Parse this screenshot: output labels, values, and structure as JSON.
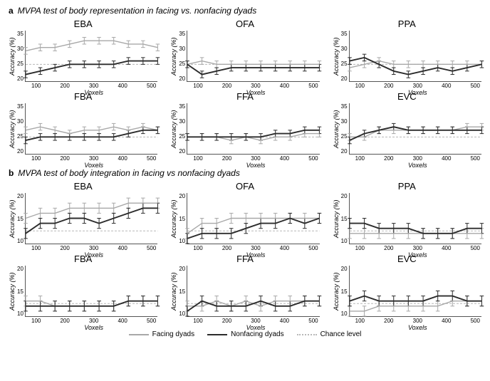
{
  "colors": {
    "facing": "#a8a8a8",
    "nonfacing": "#2c2c2c",
    "chance": "#b8b8b8",
    "axis": "#555555",
    "text": "#000000",
    "background": "#ffffff"
  },
  "typography": {
    "title_fontsize": 12,
    "chart_title_fontsize": 13,
    "axis_fontsize": 8,
    "label_fontsize": 9
  },
  "xvalues": [
    50,
    100,
    150,
    200,
    250,
    300,
    350,
    400,
    450,
    500
  ],
  "xticks": [
    100,
    200,
    300,
    400,
    500
  ],
  "line_styles": {
    "facing_width": 1.4,
    "nonfacing_width": 1.9,
    "chance_dash": "3,2",
    "chance_width": 1
  },
  "error_bar": {
    "width": 1,
    "cap": 3,
    "half_height": 1.0
  },
  "sections": {
    "a": {
      "letter": "a",
      "title": "MVPA test of body representation in facing vs. nonfacing dyads",
      "ylim": [
        20,
        35
      ],
      "ytick_step": 5,
      "chance": 25,
      "ylabel": "Accuracy (%)",
      "xlabel": "Voxels",
      "charts": [
        {
          "name": "EBA",
          "facing": [
            29,
            30,
            30,
            31,
            32,
            32,
            32,
            31,
            31,
            30
          ],
          "nonfacing": [
            22,
            23,
            24,
            25,
            25,
            25,
            25,
            26,
            26,
            26
          ]
        },
        {
          "name": "OFA",
          "facing": [
            25,
            26,
            25,
            25,
            25,
            25,
            25,
            25,
            25,
            25
          ],
          "nonfacing": [
            25,
            22,
            23,
            24,
            24,
            24,
            24,
            24,
            24,
            24
          ]
        },
        {
          "name": "PPA",
          "facing": [
            24,
            25,
            26,
            25,
            25,
            25,
            25,
            25,
            25,
            25
          ],
          "nonfacing": [
            26,
            27,
            25,
            23,
            22,
            23,
            24,
            23,
            24,
            25
          ]
        },
        {
          "name": "FBA",
          "facing": [
            27,
            28,
            27,
            26,
            27,
            27,
            28,
            27,
            28,
            27
          ],
          "nonfacing": [
            24,
            25,
            25,
            25,
            25,
            25,
            25,
            26,
            27,
            27
          ]
        },
        {
          "name": "FFA",
          "facing": [
            25,
            25,
            25,
            24,
            25,
            24,
            25,
            25,
            26,
            26
          ],
          "nonfacing": [
            25,
            25,
            25,
            25,
            25,
            25,
            26,
            26,
            27,
            27
          ]
        },
        {
          "name": "EVC",
          "facing": [
            25,
            25,
            27,
            27,
            27,
            27,
            27,
            27,
            28,
            28
          ],
          "nonfacing": [
            24,
            26,
            27,
            28,
            27,
            27,
            27,
            27,
            27,
            27
          ]
        }
      ]
    },
    "b": {
      "letter": "b",
      "title": "MVPA test of body integration in facing vs nonfacing dyads",
      "ylim": [
        10,
        20
      ],
      "ytick_step": 5,
      "chance": 12.5,
      "ylabel": "Accuracy (%)",
      "xlabel": "Voxels",
      "charts": [
        {
          "name": "EBA",
          "facing": [
            15,
            16,
            16,
            17,
            17,
            17,
            17,
            18,
            18,
            18
          ],
          "nonfacing": [
            12,
            14,
            14,
            15,
            15,
            14,
            15,
            16,
            17,
            17
          ]
        },
        {
          "name": "OFA",
          "facing": [
            12,
            14,
            14,
            15,
            15,
            15,
            15,
            15,
            15,
            15
          ],
          "nonfacing": [
            11,
            12,
            12,
            12,
            13,
            14,
            14,
            15,
            14,
            15
          ]
        },
        {
          "name": "PPA",
          "facing": [
            12,
            12,
            12,
            12,
            12,
            12,
            12,
            12,
            12,
            12
          ],
          "nonfacing": [
            14,
            14,
            13,
            13,
            13,
            12,
            12,
            12,
            13,
            13
          ]
        },
        {
          "name": "FBA",
          "facing": [
            13,
            13,
            12,
            12,
            12,
            12,
            12,
            13,
            13,
            13
          ],
          "nonfacing": [
            12,
            12,
            12,
            12,
            12,
            12,
            12,
            13,
            13,
            13
          ]
        },
        {
          "name": "FFA",
          "facing": [
            12,
            12,
            13,
            12,
            13,
            12,
            13,
            13,
            13,
            13
          ],
          "nonfacing": [
            11,
            13,
            12,
            12,
            12,
            13,
            12,
            12,
            13,
            13
          ]
        },
        {
          "name": "EVC",
          "facing": [
            11,
            11,
            12,
            12,
            12,
            12,
            12,
            13,
            13,
            13
          ],
          "nonfacing": [
            13,
            14,
            13,
            13,
            13,
            13,
            14,
            14,
            13,
            13
          ]
        }
      ]
    }
  },
  "legend": {
    "facing": "Facing dyads",
    "nonfacing": "Nonfacing dyads",
    "chance": "Chance level"
  }
}
